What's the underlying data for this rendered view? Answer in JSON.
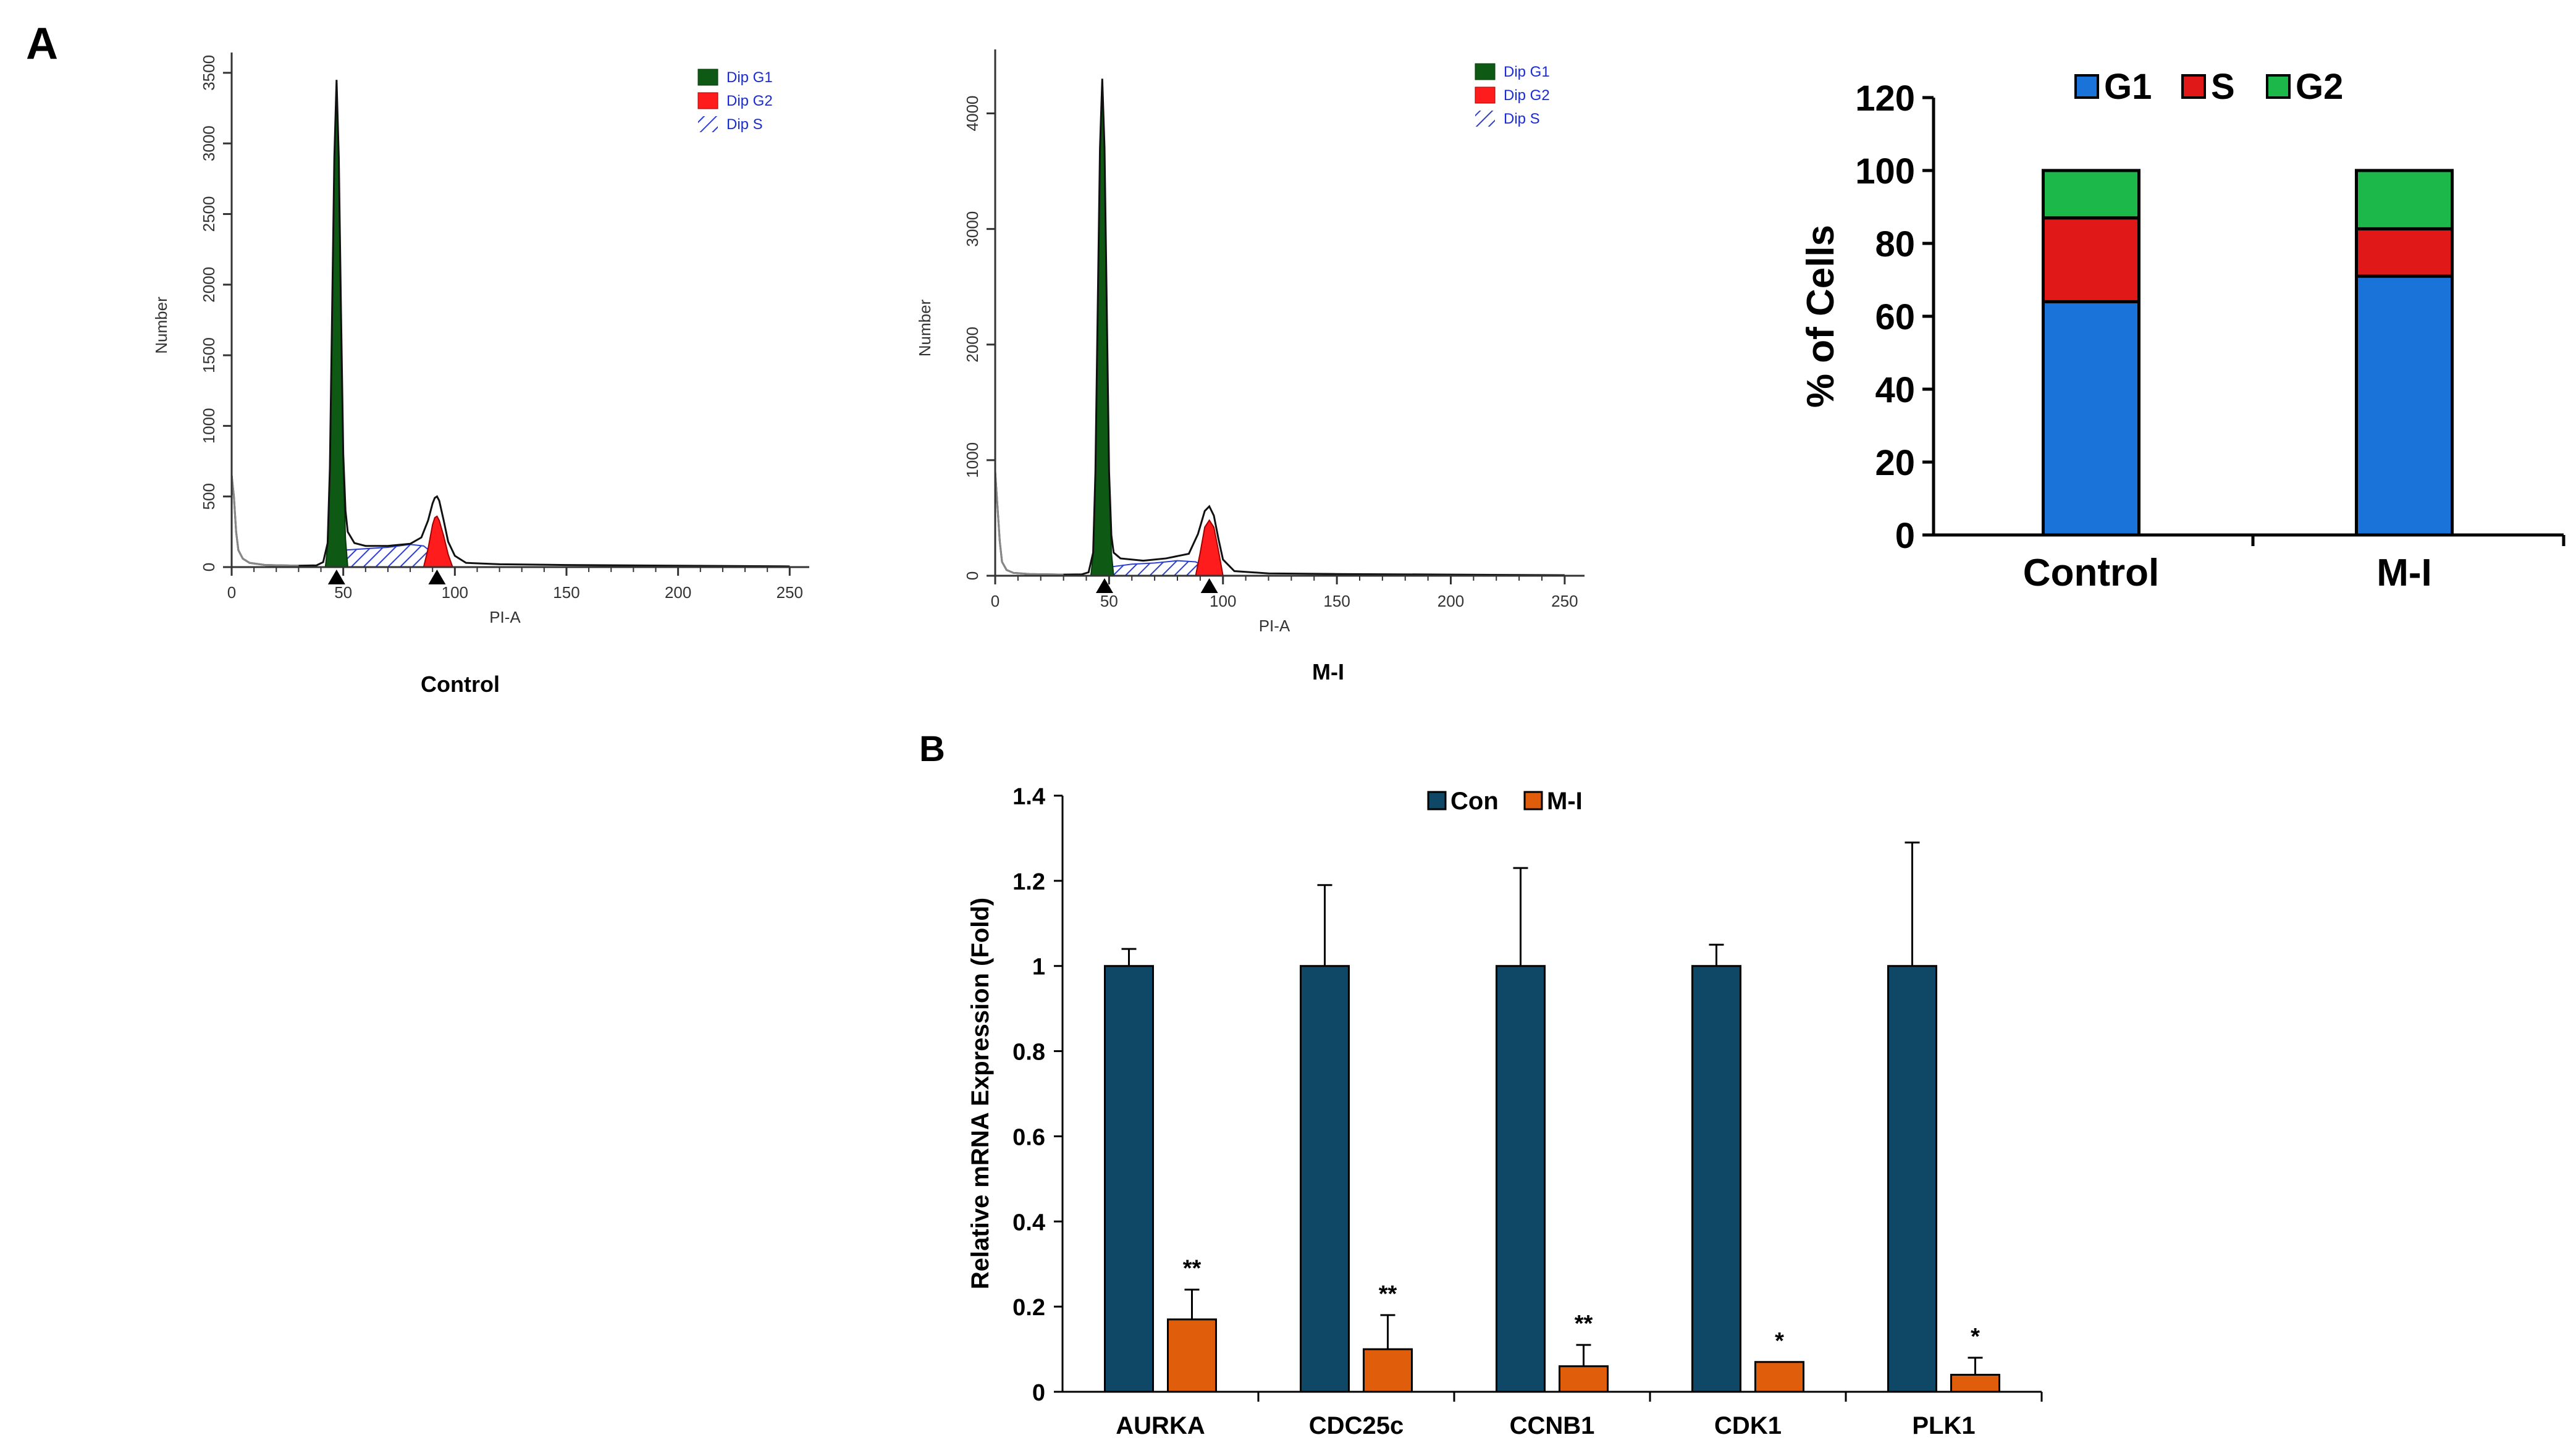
{
  "panel_labels": {
    "a": "A",
    "b": "B"
  },
  "colors": {
    "g1_fill": "#0e5a14",
    "g2_fill": "#ff1c1c",
    "s_hatch": "#2d3fd0",
    "legend_text": "#1a2ccf",
    "stack_g1": "#1a73d9",
    "stack_s": "#e01818",
    "stack_g2": "#1db84a",
    "con": "#0f4766",
    "mi": "#e05d0c"
  },
  "chart_data": [
    {
      "type": "area",
      "caption": "Control",
      "xlabel": "PI-A",
      "ylabel": "Number",
      "xlim": [
        0,
        256
      ],
      "ylim": [
        0,
        3600
      ],
      "xticks": [
        0,
        50,
        100,
        150,
        200,
        250
      ],
      "yticks": [
        0,
        500,
        1000,
        1500,
        2000,
        2500,
        3000,
        3500
      ],
      "legend": [
        "Dip G1",
        "Dip G2",
        "Dip S"
      ],
      "markers": [
        47,
        92
      ],
      "envelope": [
        [
          0,
          650
        ],
        [
          1,
          500
        ],
        [
          2,
          250
        ],
        [
          3,
          120
        ],
        [
          5,
          60
        ],
        [
          8,
          30
        ],
        [
          15,
          15
        ],
        [
          30,
          10
        ],
        [
          38,
          12
        ],
        [
          41,
          35
        ],
        [
          43,
          170
        ],
        [
          44,
          700
        ],
        [
          45,
          1800
        ],
        [
          46,
          2900
        ],
        [
          47,
          3450
        ],
        [
          48,
          2900
        ],
        [
          49,
          1800
        ],
        [
          50,
          800
        ],
        [
          51,
          400
        ],
        [
          52,
          250
        ],
        [
          55,
          170
        ],
        [
          60,
          150
        ],
        [
          70,
          150
        ],
        [
          80,
          165
        ],
        [
          85,
          210
        ],
        [
          88,
          330
        ],
        [
          90,
          450
        ],
        [
          91,
          490
        ],
        [
          92,
          500
        ],
        [
          93,
          470
        ],
        [
          95,
          330
        ],
        [
          97,
          180
        ],
        [
          100,
          80
        ],
        [
          105,
          30
        ],
        [
          120,
          20
        ],
        [
          150,
          15
        ],
        [
          200,
          10
        ],
        [
          250,
          5
        ]
      ],
      "g1_peak": [
        [
          42,
          0
        ],
        [
          43,
          150
        ],
        [
          44,
          650
        ],
        [
          45,
          1750
        ],
        [
          46,
          2850
        ],
        [
          47,
          3420
        ],
        [
          48,
          2850
        ],
        [
          49,
          1750
        ],
        [
          50,
          700
        ],
        [
          51,
          200
        ],
        [
          52,
          0
        ]
      ],
      "g2_peak": [
        [
          86,
          0
        ],
        [
          88,
          130
        ],
        [
          90,
          300
        ],
        [
          91,
          350
        ],
        [
          92,
          360
        ],
        [
          93,
          330
        ],
        [
          95,
          220
        ],
        [
          97,
          90
        ],
        [
          99,
          0
        ]
      ],
      "s_band": [
        [
          45,
          0
        ],
        [
          50,
          120
        ],
        [
          60,
          130
        ],
        [
          70,
          140
        ],
        [
          80,
          160
        ],
        [
          86,
          150
        ],
        [
          90,
          100
        ],
        [
          95,
          40
        ],
        [
          99,
          0
        ]
      ]
    },
    {
      "type": "area",
      "caption": "M-I",
      "xlabel": "PI-A",
      "ylabel": "Number",
      "xlim": [
        0,
        256
      ],
      "ylim": [
        0,
        4500
      ],
      "xticks": [
        0,
        50,
        100,
        150,
        200,
        250
      ],
      "yticks": [
        0,
        1000,
        2000,
        3000,
        4000
      ],
      "legend": [
        "Dip G1",
        "Dip G2",
        "Dip S"
      ],
      "markers": [
        48,
        94
      ],
      "envelope": [
        [
          0,
          900
        ],
        [
          1,
          600
        ],
        [
          2,
          300
        ],
        [
          3,
          120
        ],
        [
          5,
          50
        ],
        [
          8,
          25
        ],
        [
          15,
          15
        ],
        [
          30,
          10
        ],
        [
          38,
          12
        ],
        [
          41,
          30
        ],
        [
          43,
          200
        ],
        [
          44,
          900
        ],
        [
          45,
          2300
        ],
        [
          46,
          3700
        ],
        [
          47,
          4300
        ],
        [
          48,
          3700
        ],
        [
          49,
          2300
        ],
        [
          50,
          900
        ],
        [
          51,
          350
        ],
        [
          52,
          200
        ],
        [
          55,
          150
        ],
        [
          65,
          130
        ],
        [
          75,
          150
        ],
        [
          85,
          190
        ],
        [
          89,
          360
        ],
        [
          92,
          560
        ],
        [
          94,
          600
        ],
        [
          96,
          520
        ],
        [
          98,
          320
        ],
        [
          100,
          140
        ],
        [
          105,
          40
        ],
        [
          120,
          20
        ],
        [
          150,
          15
        ],
        [
          200,
          10
        ],
        [
          250,
          5
        ]
      ],
      "g1_peak": [
        [
          42,
          0
        ],
        [
          43,
          180
        ],
        [
          44,
          850
        ],
        [
          45,
          2250
        ],
        [
          46,
          3650
        ],
        [
          47,
          4250
        ],
        [
          48,
          3650
        ],
        [
          49,
          2250
        ],
        [
          50,
          850
        ],
        [
          51,
          200
        ],
        [
          52,
          0
        ]
      ],
      "g2_peak": [
        [
          88,
          0
        ],
        [
          90,
          200
        ],
        [
          92,
          420
        ],
        [
          94,
          480
        ],
        [
          96,
          420
        ],
        [
          98,
          220
        ],
        [
          100,
          0
        ]
      ],
      "s_band": [
        [
          45,
          0
        ],
        [
          52,
          80
        ],
        [
          60,
          100
        ],
        [
          70,
          110
        ],
        [
          80,
          130
        ],
        [
          88,
          120
        ],
        [
          94,
          60
        ],
        [
          100,
          0
        ]
      ]
    },
    {
      "type": "bar",
      "stacked": true,
      "categories": [
        "Control",
        "M-I"
      ],
      "series": [
        {
          "name": "G1",
          "values": [
            64,
            71
          ]
        },
        {
          "name": "S",
          "values": [
            23,
            13
          ]
        },
        {
          "name": "G2",
          "values": [
            13,
            16
          ]
        }
      ],
      "ylabel": "% of Cells",
      "ylim": [
        0,
        120
      ],
      "yticks": [
        0,
        20,
        40,
        60,
        80,
        100,
        120
      ],
      "legend_position": "top"
    },
    {
      "type": "bar",
      "categories": [
        "AURKA",
        "CDC25c",
        "CCNB1",
        "CDK1",
        "PLK1"
      ],
      "series": [
        {
          "name": "Con",
          "values": [
            1,
            1,
            1,
            1,
            1
          ],
          "errors": [
            0.04,
            0.19,
            0.23,
            0.05,
            0.29
          ]
        },
        {
          "name": "M-I",
          "values": [
            0.17,
            0.1,
            0.06,
            0.07,
            0.04
          ],
          "errors": [
            0.07,
            0.08,
            0.05,
            0.0,
            0.04
          ]
        }
      ],
      "significance": [
        "**",
        "**",
        "**",
        "*",
        "*"
      ],
      "ylabel": "Relative mRNA Expression (Fold)",
      "ylim": [
        0,
        1.4
      ],
      "yticks": [
        0,
        0.2,
        0.4,
        0.6,
        0.8,
        1,
        1.2,
        1.4
      ],
      "ytick_labels": [
        "0",
        "0.2",
        "0.4",
        "0.6",
        "0.8",
        "1",
        "1.2",
        "1.4"
      ],
      "legend_position": "top"
    }
  ]
}
